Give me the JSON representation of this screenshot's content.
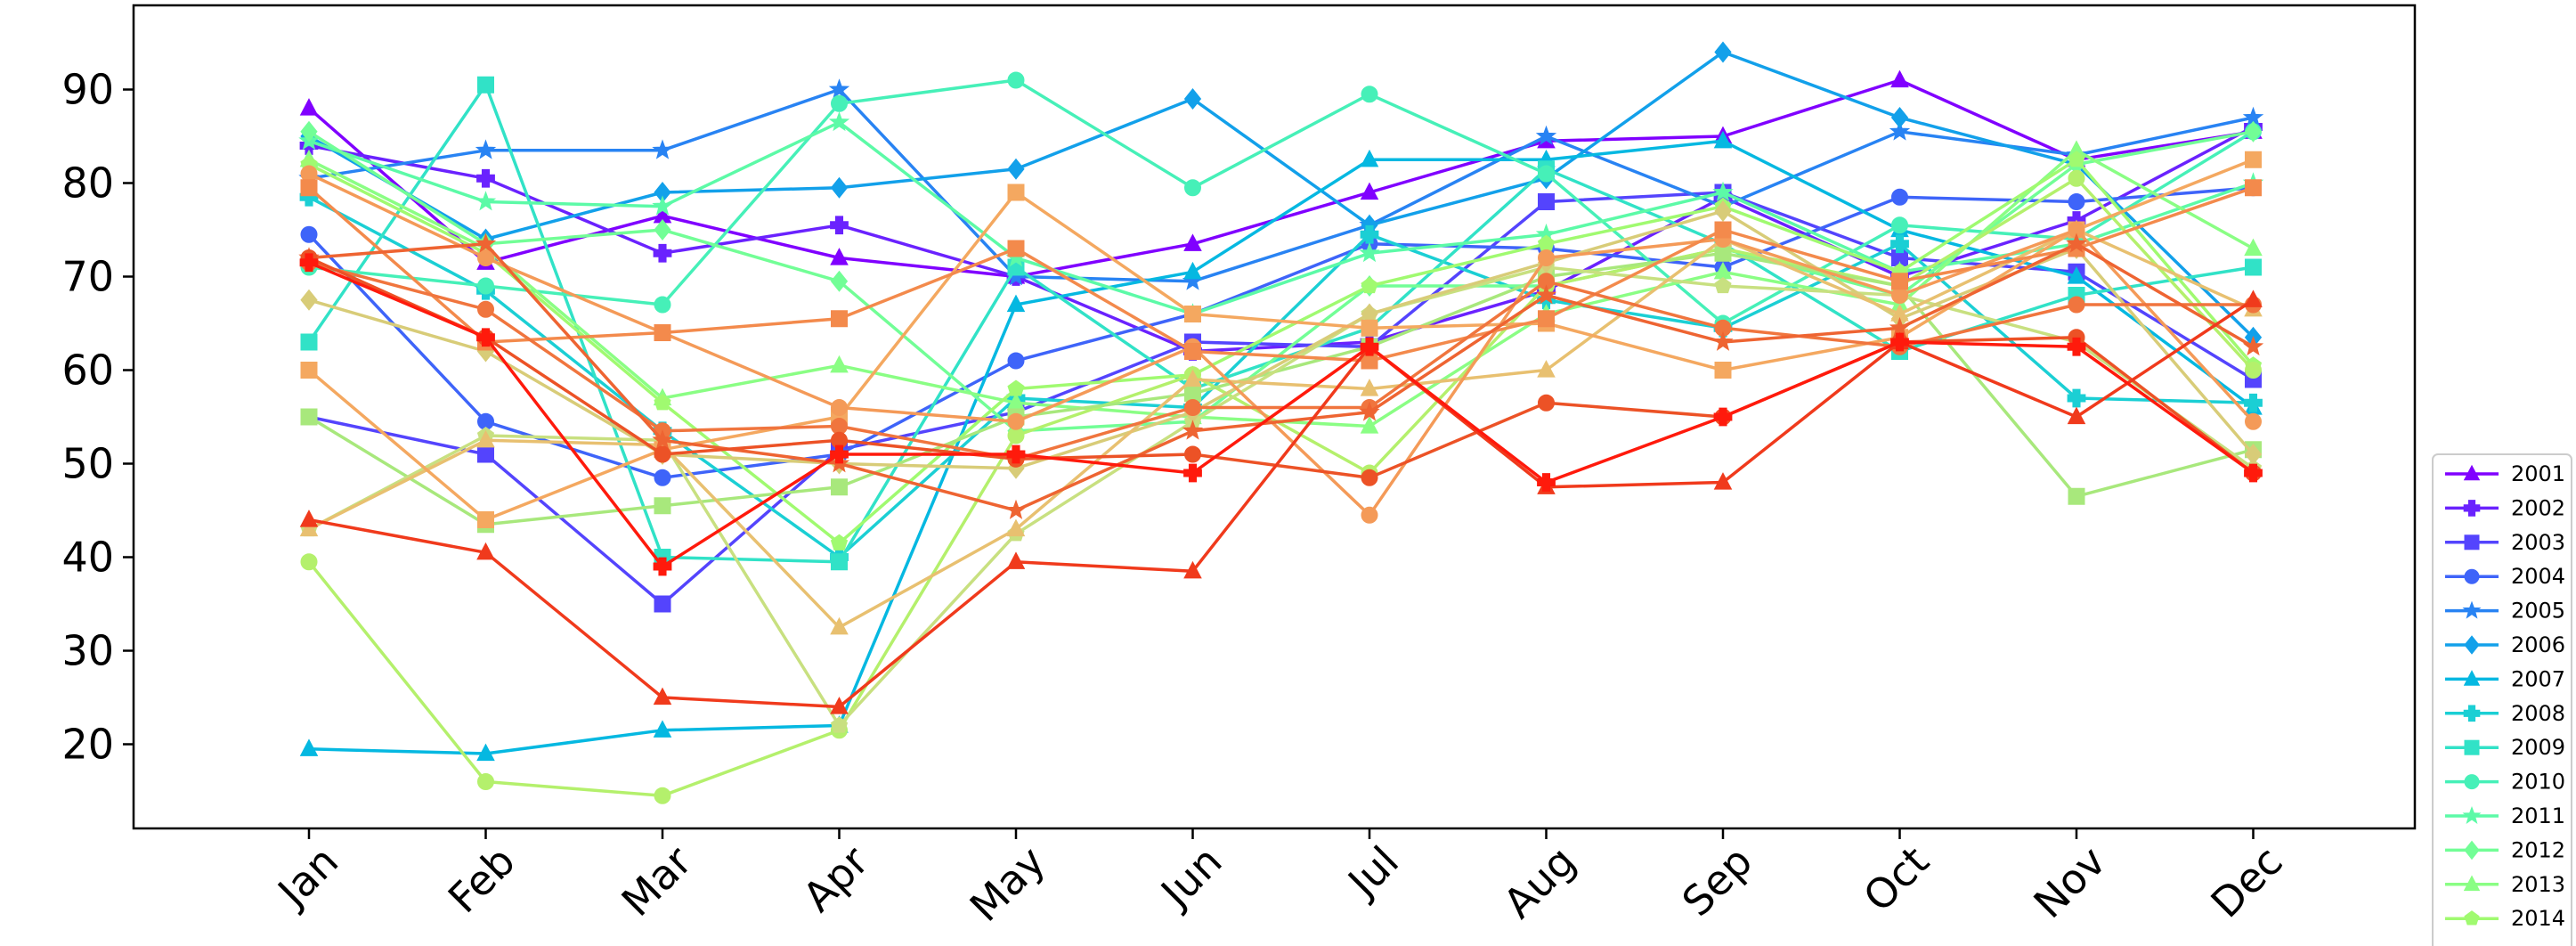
{
  "chart_data": {
    "type": "line",
    "categories": [
      "Jan",
      "Feb",
      "Mar",
      "Apr",
      "May",
      "Jun",
      "Jul",
      "Aug",
      "Sep",
      "Oct",
      "Nov",
      "Dec"
    ],
    "y_ticks": [
      20,
      30,
      40,
      50,
      60,
      70,
      80,
      90
    ],
    "ylim": [
      11,
      99
    ],
    "grid": false,
    "legend_placement": "right",
    "series": [
      {
        "name": "2001",
        "color": "#8000ff",
        "marker": "triangle",
        "values": [
          88,
          71.5,
          76.5,
          72,
          70,
          73.5,
          79,
          84.5,
          85,
          91,
          82.5,
          85.5
        ]
      },
      {
        "name": "2002",
        "color": "#6a22fe",
        "marker": "plus",
        "values": [
          84,
          80.5,
          72.5,
          75.5,
          70,
          62,
          63,
          68.5,
          78.5,
          70,
          76,
          86
        ]
      },
      {
        "name": "2003",
        "color": "#5444fd",
        "marker": "square",
        "values": [
          55,
          51,
          35,
          51.5,
          55.5,
          63,
          62.5,
          78,
          79,
          72,
          70.5,
          59
        ]
      },
      {
        "name": "2004",
        "color": "#3e64f9",
        "marker": "circle",
        "values": [
          74.5,
          54.5,
          48.5,
          51,
          61,
          66,
          73.5,
          73,
          71,
          78.5,
          78,
          79.5
        ]
      },
      {
        "name": "2005",
        "color": "#2883f3",
        "marker": "star",
        "values": [
          80.5,
          83.5,
          83.5,
          90,
          70,
          69.5,
          75.5,
          85,
          77.5,
          85.5,
          83,
          87
        ]
      },
      {
        "name": "2006",
        "color": "#12a0ea",
        "marker": "diamond",
        "values": [
          85,
          74,
          79,
          79.5,
          81.5,
          89,
          75.5,
          80.5,
          94,
          87,
          82,
          63.5
        ]
      },
      {
        "name": "2007",
        "color": "#05b8e1",
        "marker": "triangle",
        "values": [
          19.5,
          19,
          21.5,
          22,
          67,
          70.5,
          82.5,
          82.5,
          84.5,
          75,
          70,
          56
        ]
      },
      {
        "name": "2008",
        "color": "#1bcfd4",
        "marker": "plus",
        "values": [
          78.5,
          68.5,
          53.5,
          40,
          57,
          56,
          74.5,
          67.5,
          64.5,
          73.5,
          57,
          56.5
        ]
      },
      {
        "name": "2009",
        "color": "#31e2c7",
        "marker": "square",
        "values": [
          63,
          90.5,
          40,
          39.5,
          71,
          58,
          64.5,
          81.5,
          73.5,
          62,
          68,
          71
        ]
      },
      {
        "name": "2010",
        "color": "#46f0b8",
        "marker": "circle",
        "values": [
          71,
          69,
          67,
          88.5,
          91,
          79.5,
          89.5,
          81,
          65,
          75.5,
          74,
          85.5
        ]
      },
      {
        "name": "2011",
        "color": "#5cfaa7",
        "marker": "star",
        "values": [
          84.5,
          78,
          77.5,
          86.5,
          72,
          66,
          72.5,
          74.5,
          79,
          70.5,
          73.5,
          80
        ]
      },
      {
        "name": "2012",
        "color": "#72fe96",
        "marker": "diamond",
        "values": [
          85.5,
          73.5,
          75,
          69.5,
          53.5,
          54.5,
          69,
          69,
          73,
          68,
          82,
          85.5
        ]
      },
      {
        "name": "2013",
        "color": "#8afe84",
        "marker": "triangle",
        "values": [
          82.5,
          73,
          57,
          60.5,
          56.5,
          55,
          54,
          66,
          70.5,
          67,
          83.5,
          73
        ]
      },
      {
        "name": "2014",
        "color": "#a0fa70",
        "marker": "pentagon",
        "values": [
          82,
          72.5,
          56.5,
          41.5,
          58,
          59.5,
          69,
          73.5,
          77.5,
          70.5,
          82.5,
          60.5
        ]
      },
      {
        "name": "",
        "color": "#b4f06c",
        "marker": "circle",
        "values": [
          39.5,
          16,
          14.5,
          21.5,
          53,
          59.5,
          49,
          69,
          73,
          69,
          80.5,
          60
        ]
      },
      {
        "name": "",
        "color": "#a8e87c",
        "marker": "square",
        "values": [
          55,
          43.5,
          45.5,
          47.5,
          55,
          57.5,
          62.5,
          70,
          72.5,
          69,
          46.5,
          51.5
        ]
      },
      {
        "name": "",
        "color": "#c8e080",
        "marker": "pentagon",
        "values": [
          43,
          53,
          52.5,
          22,
          42.5,
          54.5,
          66,
          71,
          69,
          68,
          63,
          49.5
        ]
      },
      {
        "name": "",
        "color": "#d8cc78",
        "marker": "diamond",
        "values": [
          67.5,
          62,
          51,
          50,
          49.5,
          55.5,
          66,
          71.5,
          77,
          65.5,
          73,
          51
        ]
      },
      {
        "name": "",
        "color": "#e8c070",
        "marker": "triangle",
        "values": [
          43,
          52.5,
          52,
          32.5,
          43,
          59,
          58,
          60,
          74,
          66,
          75,
          66.5
        ]
      },
      {
        "name": "",
        "color": "#f4a860",
        "marker": "square",
        "values": [
          60,
          44,
          51.5,
          55,
          79,
          66,
          64.5,
          65,
          60,
          63.5,
          75,
          82.5
        ]
      },
      {
        "name": "",
        "color": "#f49a58",
        "marker": "circle",
        "values": [
          81,
          72,
          64,
          56,
          54.5,
          62.5,
          44.5,
          72,
          74,
          68,
          75,
          54.5
        ]
      },
      {
        "name": "",
        "color": "#f38a4c",
        "marker": "square",
        "values": [
          79.5,
          63,
          64,
          65.5,
          73,
          62,
          61,
          65.5,
          75,
          69.5,
          73,
          79.5
        ]
      },
      {
        "name": "",
        "color": "#f0753e",
        "marker": "circle",
        "values": [
          71.5,
          66.5,
          53.5,
          54,
          50.5,
          56,
          56,
          69.5,
          64.5,
          62.5,
          67,
          67
        ]
      },
      {
        "name": "",
        "color": "#ee6432",
        "marker": "star",
        "values": [
          72,
          73.5,
          52.5,
          50,
          45,
          53.5,
          55.5,
          68,
          63,
          64.5,
          73.5,
          62.5
        ]
      },
      {
        "name": "",
        "color": "#ec5226",
        "marker": "circle",
        "values": [
          72,
          63.5,
          51,
          52.5,
          50.5,
          51,
          48.5,
          56.5,
          55,
          63,
          63.5,
          49
        ]
      },
      {
        "name": "",
        "color": "#f03a1c",
        "marker": "triangle",
        "values": [
          44,
          40.5,
          25,
          24,
          39.5,
          38.5,
          62.5,
          47.5,
          48,
          63,
          55,
          67.5
        ]
      },
      {
        "name": "",
        "color": "#ff1a0c",
        "marker": "plus",
        "values": [
          71.5,
          63.5,
          39,
          51,
          51,
          49,
          62.5,
          48,
          55,
          63,
          62.5,
          49
        ]
      }
    ]
  }
}
